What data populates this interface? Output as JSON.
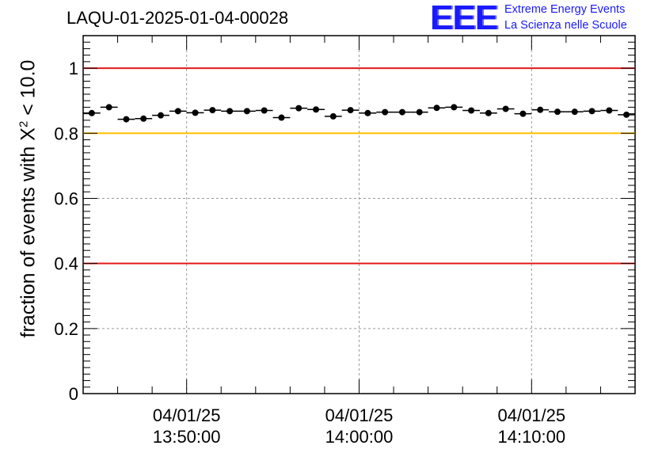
{
  "title": "LAQU-01-2025-01-04-00028",
  "logo": {
    "mark": "EEE",
    "line1": "Extreme Energy Events",
    "line2": "La Scienza nelle Scuole"
  },
  "colors": {
    "red_line": "#e31a1a",
    "orange_line": "#ffc000",
    "logo_blue": "#1a1aff",
    "marker": "#000000",
    "grid": "#9a9a9a"
  },
  "chart_data": {
    "type": "scatter",
    "title": "LAQU-01-2025-01-04-00028",
    "ylabel_parts": [
      "fraction of events with ",
      "Χ",
      "2",
      " < 10.0"
    ],
    "xlim_minutes": [
      -16.0,
      16.0
    ],
    "ylim": [
      0,
      1.1
    ],
    "grid": true,
    "yticks": [
      0,
      0.2,
      0.4,
      0.6,
      0.8,
      1
    ],
    "ytick_labels": [
      "0",
      "0.2",
      "0.4",
      "0.6",
      "0.8",
      "1"
    ],
    "xticks": [
      {
        "t": -10,
        "date": "04/01/25",
        "time": "13:50:00"
      },
      {
        "t": 0,
        "date": "04/01/25",
        "time": "14:00:00"
      },
      {
        "t": 10,
        "date": "04/01/25",
        "time": "14:10:00"
      }
    ],
    "reference_lines": [
      {
        "y": 1.0,
        "color": "#e31a1a"
      },
      {
        "y": 0.8,
        "color": "#ffc000"
      },
      {
        "y": 0.4,
        "color": "#e31a1a"
      }
    ],
    "bin_width_minutes": 1.0,
    "x": [
      -15.5,
      -14.5,
      -13.5,
      -12.5,
      -11.5,
      -10.5,
      -9.5,
      -8.5,
      -7.5,
      -6.5,
      -5.5,
      -4.5,
      -3.5,
      -2.5,
      -1.5,
      -0.5,
      0.5,
      1.5,
      2.5,
      3.5,
      4.5,
      5.5,
      6.5,
      7.5,
      8.5,
      9.5,
      10.5,
      11.5,
      12.5,
      13.5,
      14.5,
      15.5
    ],
    "y": [
      0.862,
      0.88,
      0.843,
      0.845,
      0.855,
      0.868,
      0.863,
      0.871,
      0.868,
      0.868,
      0.87,
      0.848,
      0.877,
      0.873,
      0.852,
      0.871,
      0.862,
      0.865,
      0.865,
      0.865,
      0.878,
      0.88,
      0.87,
      0.862,
      0.875,
      0.86,
      0.872,
      0.866,
      0.866,
      0.868,
      0.87,
      0.857
    ]
  }
}
